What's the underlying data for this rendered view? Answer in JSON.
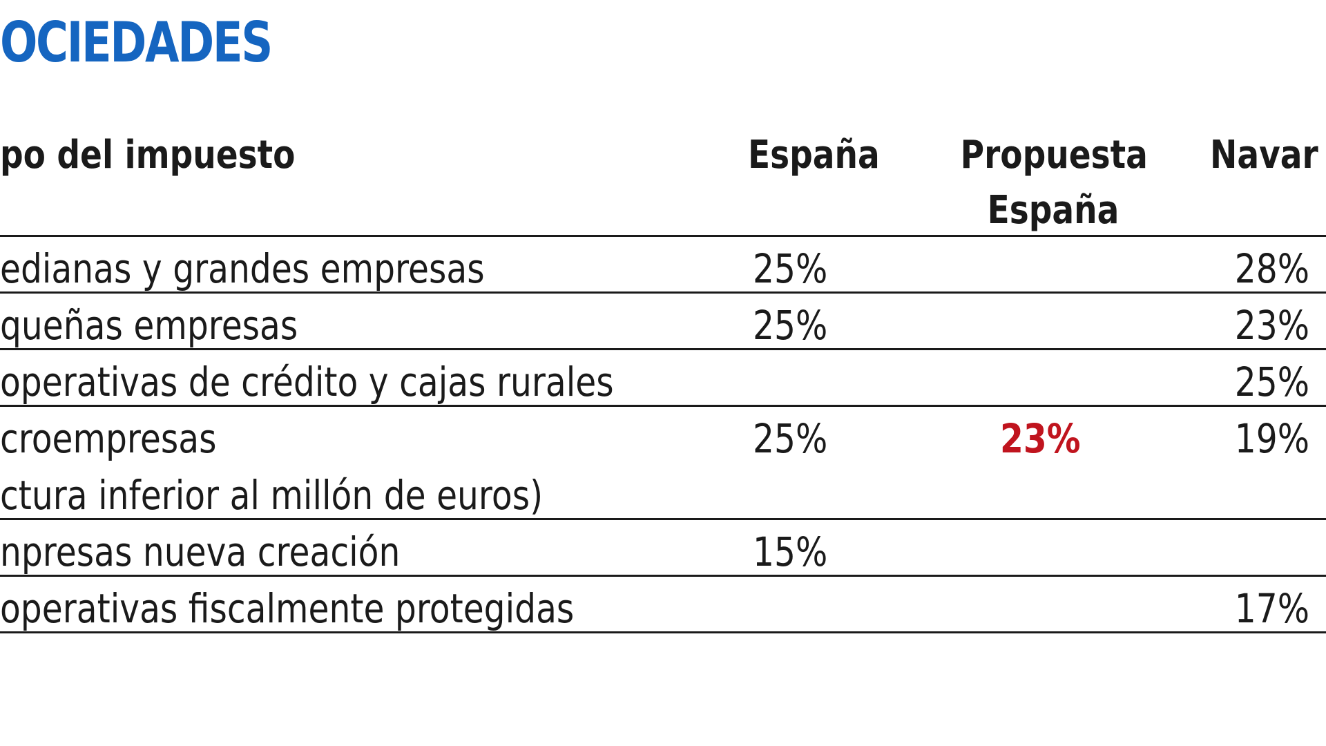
{
  "title": "OCIEDADES",
  "header": {
    "col1": "po del impuesto",
    "col2": "España",
    "col3_line1": "Propuesta",
    "col3_line2": "España",
    "col4": "Navar"
  },
  "rows": [
    {
      "label": "edianas y grandes empresas",
      "espana": "25%",
      "propuesta": "",
      "navarra": "28%"
    },
    {
      "label": "queñas empresas",
      "espana": "25%",
      "propuesta": "",
      "navarra": "23%"
    },
    {
      "label": "operativas de crédito y cajas rurales",
      "espana": "",
      "propuesta": "",
      "navarra": "25%"
    },
    {
      "label": "croempresas",
      "label2": "ctura inferior al millón de euros)",
      "espana": "25%",
      "propuesta": "23%",
      "navarra": "19%"
    },
    {
      "label": "npresas nueva creación",
      "espana": "15%",
      "propuesta": "",
      "navarra": ""
    },
    {
      "label": "operativas fiscalmente protegidas",
      "espana": "",
      "propuesta": "",
      "navarra": "17%"
    }
  ],
  "colors": {
    "title": "#1565c0",
    "highlight": "#c0141e",
    "text": "#1a1a1a"
  }
}
